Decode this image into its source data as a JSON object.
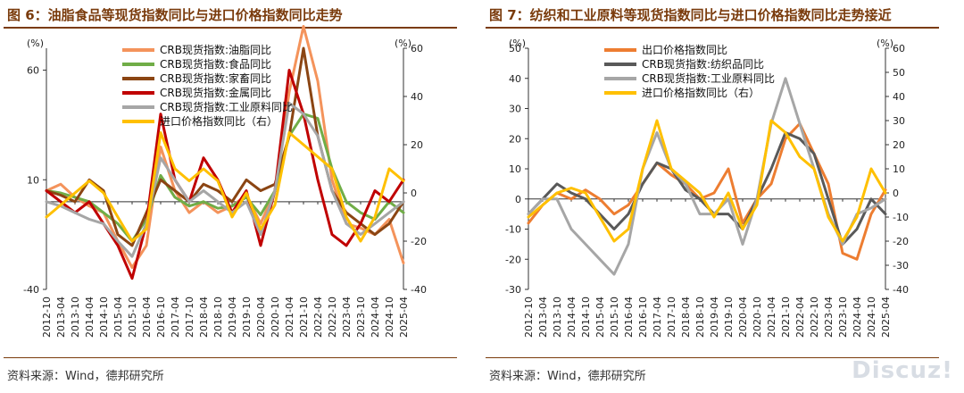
{
  "panels": [
    {
      "title": "图 6：油脂食品等现货指数同比与进口价格指数同比走势",
      "source": "资料来源：Wind，德邦研究所",
      "left_unit": "(%)",
      "right_unit": "(%)",
      "left_ticks": [
        "60",
        "10",
        "-40"
      ],
      "right_ticks": [
        "60",
        "40",
        "20",
        "0",
        "-20",
        "-40"
      ]
    },
    {
      "title": "图 7：纺织和工业原料等现货指数同比与进口价格指数同比走势接近",
      "source": "资料来源：Wind，德邦研究所",
      "left_unit": "(%)",
      "right_unit": "(%)",
      "left_ticks": [
        "50",
        "40",
        "30",
        "20",
        "10",
        "0",
        "-10",
        "-20",
        "-30"
      ],
      "right_ticks": [
        "60",
        "50",
        "40",
        "30",
        "20",
        "10",
        "0",
        "-10",
        "-20",
        "-30",
        "-40"
      ]
    }
  ],
  "watermark": "Discuz!",
  "chart_data": [
    {
      "type": "line",
      "title": "图 6：油脂食品等现货指数同比与进口价格指数同比走势",
      "x": [
        "2012-10",
        "2013-04",
        "2013-10",
        "2014-04",
        "2014-10",
        "2015-04",
        "2015-10",
        "2016-04",
        "2016-10",
        "2017-04",
        "2017-10",
        "2018-04",
        "2018-10",
        "2019-04",
        "2019-10",
        "2020-04",
        "2020-10",
        "2021-04",
        "2021-10",
        "2022-04",
        "2022-10",
        "2023-04",
        "2023-10",
        "2024-04",
        "2024-10",
        "2025-04"
      ],
      "y_left": {
        "range": [
          -40,
          70
        ],
        "ticks": [
          60,
          10,
          -40
        ],
        "unit": "(%)"
      },
      "y_right": {
        "range": [
          -40,
          60
        ],
        "ticks": [
          60,
          40,
          20,
          0,
          -20,
          -40
        ],
        "unit": "(%)"
      },
      "legend_position": "top-center",
      "grid": false,
      "series": [
        {
          "name": "CRB现货指数:油脂同比",
          "axis": "left",
          "color": "#f4935b",
          "values": [
            5,
            8,
            2,
            -2,
            -5,
            -18,
            -30,
            -20,
            25,
            5,
            -5,
            0,
            -5,
            -2,
            3,
            -10,
            5,
            50,
            80,
            55,
            10,
            -10,
            -12,
            -15,
            -8,
            -28
          ]
        },
        {
          "name": "CRB现货指数:食品同比",
          "axis": "left",
          "color": "#70ad47",
          "values": [
            5,
            4,
            2,
            0,
            -5,
            -10,
            -18,
            -8,
            12,
            2,
            -2,
            0,
            -3,
            -2,
            2,
            -6,
            5,
            30,
            40,
            38,
            15,
            0,
            -5,
            -8,
            0,
            -5
          ]
        },
        {
          "name": "CRB现货指数:家畜同比",
          "axis": "left",
          "color": "#8b4513",
          "values": [
            5,
            3,
            0,
            10,
            5,
            -15,
            -20,
            -5,
            10,
            5,
            0,
            8,
            5,
            0,
            10,
            5,
            8,
            30,
            70,
            30,
            5,
            -5,
            -10,
            -15,
            -10,
            0
          ]
        },
        {
          "name": "CRB现货指数:金属同比",
          "axis": "left",
          "color": "#c00000",
          "values": [
            5,
            0,
            -5,
            0,
            -10,
            -20,
            -35,
            -10,
            40,
            10,
            0,
            20,
            10,
            -5,
            5,
            -20,
            5,
            60,
            40,
            10,
            -15,
            -20,
            -10,
            5,
            0,
            10
          ]
        },
        {
          "name": "CRB现货指数:工业原料同比",
          "axis": "left",
          "color": "#a6a6a6",
          "values": [
            0,
            -2,
            -5,
            -8,
            -10,
            -18,
            -25,
            -10,
            20,
            10,
            0,
            5,
            0,
            -5,
            0,
            -15,
            5,
            45,
            40,
            30,
            5,
            -10,
            -15,
            -10,
            -5,
            0
          ]
        },
        {
          "name": "进口价格指数同比（右）",
          "axis": "right",
          "color": "#ffc000",
          "values": [
            -10,
            -5,
            0,
            5,
            0,
            -10,
            -20,
            -15,
            25,
            10,
            5,
            10,
            5,
            -10,
            0,
            -15,
            -5,
            25,
            20,
            15,
            10,
            -10,
            -20,
            -10,
            10,
            5
          ]
        }
      ]
    },
    {
      "type": "line",
      "title": "图 7：纺织和工业原料等现货指数同比与进口价格指数同比走势接近",
      "x": [
        "2012-10",
        "2013-04",
        "2013-10",
        "2014-04",
        "2014-10",
        "2015-04",
        "2015-10",
        "2016-04",
        "2016-10",
        "2017-04",
        "2017-10",
        "2018-04",
        "2018-10",
        "2019-04",
        "2019-10",
        "2020-04",
        "2020-10",
        "2021-04",
        "2021-10",
        "2022-04",
        "2022-10",
        "2023-04",
        "2023-10",
        "2024-04",
        "2024-10",
        "2025-04"
      ],
      "y_left": {
        "range": [
          -30,
          50
        ],
        "ticks": [
          50,
          40,
          30,
          20,
          10,
          0,
          -10,
          -20,
          -30
        ],
        "unit": "(%)"
      },
      "y_right": {
        "range": [
          -40,
          60
        ],
        "ticks": [
          60,
          50,
          40,
          30,
          20,
          10,
          0,
          -10,
          -20,
          -30,
          -40
        ],
        "unit": "(%)"
      },
      "legend_position": "top-center",
      "grid": false,
      "series": [
        {
          "name": "出口价格指数同比",
          "axis": "left",
          "color": "#ed7d31",
          "values": [
            -8,
            -2,
            2,
            0,
            3,
            0,
            -5,
            -2,
            5,
            12,
            8,
            5,
            0,
            2,
            10,
            -8,
            0,
            5,
            20,
            25,
            15,
            5,
            -18,
            -20,
            -5,
            3
          ]
        },
        {
          "name": "CRB现货指数:纺织品同比",
          "axis": "left",
          "color": "#595959",
          "values": [
            -5,
            0,
            5,
            2,
            0,
            -5,
            -10,
            -5,
            5,
            12,
            10,
            3,
            0,
            -5,
            -5,
            -10,
            0,
            10,
            22,
            20,
            15,
            0,
            -15,
            -10,
            0,
            -5
          ]
        },
        {
          "name": "CRB现货指数:工业原料同比",
          "axis": "left",
          "color": "#a6a6a6",
          "values": [
            -5,
            0,
            0,
            -10,
            -15,
            -20,
            -25,
            -15,
            10,
            22,
            10,
            5,
            -5,
            -5,
            0,
            -15,
            0,
            25,
            40,
            25,
            10,
            -5,
            -15,
            -5,
            -3,
            0
          ]
        },
        {
          "name": "进口价格指数同比（右）",
          "axis": "right",
          "color": "#ffc000",
          "values": [
            -10,
            -5,
            0,
            2,
            0,
            -10,
            -20,
            -15,
            10,
            30,
            10,
            5,
            0,
            -10,
            0,
            -15,
            -5,
            30,
            25,
            15,
            10,
            -10,
            -20,
            -10,
            10,
            0
          ]
        }
      ]
    }
  ]
}
